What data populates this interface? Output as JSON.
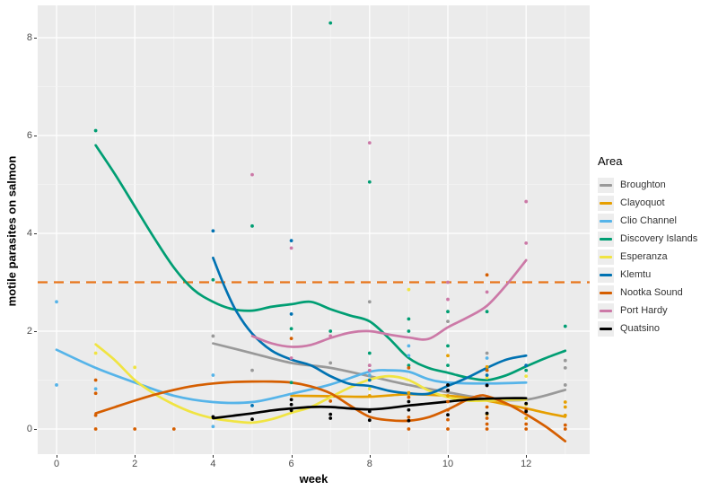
{
  "y_axis": {
    "title": "motile parasites on salmon",
    "ticks": [
      0,
      2,
      4,
      6,
      8
    ],
    "range": [
      -0.55,
      8.6
    ]
  },
  "x_axis": {
    "title": "week",
    "ticks": [
      0,
      2,
      4,
      6,
      8,
      10,
      12
    ],
    "range": [
      -0.5,
      13.6
    ]
  },
  "legend": {
    "title": "Area",
    "items": [
      {
        "label": "Broughton",
        "color": "#999999"
      },
      {
        "label": "Clayoquot",
        "color": "#E69F00"
      },
      {
        "label": "Clio Channel",
        "color": "#56B4E9"
      },
      {
        "label": "Discovery Islands",
        "color": "#009E73"
      },
      {
        "label": "Esperanza",
        "color": "#F0E442"
      },
      {
        "label": "Klemtu",
        "color": "#0072B2"
      },
      {
        "label": "Nootka Sound",
        "color": "#D55E00"
      },
      {
        "label": "Port Hardy",
        "color": "#CC79A7"
      },
      {
        "label": "Quatsino",
        "color": "#000000"
      }
    ]
  },
  "style": {
    "panel_bg": "#EBEBEB",
    "grid_major": "#FFFFFF",
    "grid_minor": "#F5F5F5",
    "ref_line_color": "#E8751A"
  },
  "chart_data": {
    "type": "scatter",
    "subtype": "scatter points with loess smooth lines",
    "title": "",
    "xlabel": "week",
    "ylabel": "motile parasites on salmon",
    "xlim": [
      -0.5,
      13.6
    ],
    "ylim": [
      -0.55,
      8.6
    ],
    "grid": "on",
    "legend_position": "right",
    "reference_line": {
      "y": 3,
      "style": "dashed",
      "color": "#E8751A"
    },
    "series": [
      {
        "name": "Broughton",
        "color": "#999999",
        "line": [
          [
            4,
            1.75
          ],
          [
            5,
            1.55
          ],
          [
            6,
            1.35
          ],
          [
            7,
            1.25
          ],
          [
            8,
            1.08
          ],
          [
            9,
            0.9
          ],
          [
            10,
            0.75
          ],
          [
            11,
            0.62
          ],
          [
            12,
            0.6
          ],
          [
            13,
            0.8
          ]
        ],
        "points": [
          [
            4,
            1.9
          ],
          [
            5,
            1.2
          ],
          [
            7,
            1.35
          ],
          [
            8,
            2.6
          ],
          [
            8,
            1.3
          ],
          [
            10,
            2.2
          ],
          [
            11,
            1.55
          ],
          [
            13,
            1.4
          ],
          [
            13,
            1.25
          ],
          [
            13,
            0.9
          ]
        ]
      },
      {
        "name": "Clayoquot",
        "color": "#E69F00",
        "line": [
          [
            6,
            0.68
          ],
          [
            7,
            0.67
          ],
          [
            8,
            0.66
          ],
          [
            9,
            0.71
          ],
          [
            10,
            0.68
          ],
          [
            10.5,
            0.64
          ],
          [
            11,
            0.58
          ],
          [
            11.5,
            0.5
          ],
          [
            12,
            0.42
          ],
          [
            12.5,
            0.33
          ],
          [
            13,
            0.25
          ]
        ],
        "points": [
          [
            8,
            0.68
          ],
          [
            9,
            0.74
          ],
          [
            10,
            1.5
          ],
          [
            10,
            0.68
          ],
          [
            11,
            1.27
          ],
          [
            11,
            0.3
          ],
          [
            12,
            0.5
          ],
          [
            12,
            0.22
          ],
          [
            13,
            0.55
          ],
          [
            13,
            0.45
          ],
          [
            13,
            0.28
          ]
        ]
      },
      {
        "name": "Clio Channel",
        "color": "#56B4E9",
        "line": [
          [
            0,
            1.62
          ],
          [
            1,
            1.25
          ],
          [
            2,
            0.95
          ],
          [
            3,
            0.68
          ],
          [
            4,
            0.55
          ],
          [
            5,
            0.55
          ],
          [
            6,
            0.72
          ],
          [
            7,
            0.91
          ],
          [
            8,
            1.17
          ],
          [
            8.5,
            1.2
          ],
          [
            9,
            1.17
          ],
          [
            9.5,
            1.02
          ],
          [
            10,
            0.95
          ],
          [
            11,
            0.93
          ],
          [
            12,
            0.95
          ]
        ],
        "points": [
          [
            0,
            2.6
          ],
          [
            0,
            0.9
          ],
          [
            1,
            0.82
          ],
          [
            4,
            1.1
          ],
          [
            4,
            0.05
          ],
          [
            8,
            1.1
          ],
          [
            9,
            1.7
          ],
          [
            9,
            1.5
          ],
          [
            11,
            1.45
          ]
        ]
      },
      {
        "name": "Discovery Islands",
        "color": "#009E73",
        "line": [
          [
            1,
            5.8
          ],
          [
            1.5,
            5.2
          ],
          [
            2,
            4.55
          ],
          [
            2.5,
            3.9
          ],
          [
            3,
            3.3
          ],
          [
            3.5,
            2.85
          ],
          [
            4,
            2.6
          ],
          [
            4.5,
            2.45
          ],
          [
            5,
            2.42
          ],
          [
            5.5,
            2.5
          ],
          [
            6,
            2.55
          ],
          [
            6.5,
            2.6
          ],
          [
            7,
            2.45
          ],
          [
            7.5,
            2.32
          ],
          [
            8,
            2.2
          ],
          [
            8.5,
            1.85
          ],
          [
            9,
            1.45
          ],
          [
            9.5,
            1.25
          ],
          [
            10,
            1.15
          ],
          [
            10.5,
            1.05
          ],
          [
            11,
            1.0
          ],
          [
            11.5,
            1.1
          ],
          [
            12,
            1.28
          ],
          [
            12.5,
            1.45
          ],
          [
            13,
            1.6
          ]
        ],
        "points": [
          [
            1,
            6.1
          ],
          [
            4,
            3.05
          ],
          [
            5,
            4.15
          ],
          [
            6,
            2.05
          ],
          [
            6,
            0.95
          ],
          [
            7,
            8.3
          ],
          [
            7,
            2.0
          ],
          [
            8,
            5.05
          ],
          [
            8,
            1.55
          ],
          [
            9,
            2.25
          ],
          [
            9,
            2.0
          ],
          [
            9,
            1.3
          ],
          [
            10,
            2.4
          ],
          [
            10,
            1.7
          ],
          [
            10,
            1.3
          ],
          [
            11,
            2.4
          ],
          [
            11,
            1.2
          ],
          [
            12,
            1.2
          ],
          [
            13,
            2.1
          ]
        ]
      },
      {
        "name": "Esperanza",
        "color": "#F0E442",
        "line": [
          [
            1,
            1.73
          ],
          [
            1.5,
            1.4
          ],
          [
            2,
            1.0
          ],
          [
            2.5,
            0.72
          ],
          [
            3,
            0.5
          ],
          [
            3.5,
            0.33
          ],
          [
            4,
            0.22
          ],
          [
            4.5,
            0.16
          ],
          [
            5,
            0.13
          ],
          [
            5.5,
            0.2
          ],
          [
            6,
            0.33
          ],
          [
            6.5,
            0.45
          ],
          [
            7,
            0.65
          ],
          [
            7.5,
            0.85
          ],
          [
            8,
            1.01
          ],
          [
            8.5,
            1.08
          ],
          [
            9,
            1.0
          ],
          [
            9.5,
            0.79
          ],
          [
            10,
            0.65
          ],
          [
            10.5,
            0.58
          ],
          [
            11,
            0.58
          ],
          [
            11.5,
            0.6
          ],
          [
            12,
            0.6
          ]
        ],
        "points": [
          [
            1,
            1.55
          ],
          [
            2,
            1.26
          ],
          [
            8,
            0.82
          ],
          [
            9,
            2.85
          ],
          [
            11,
            1.05
          ],
          [
            12,
            1.08
          ],
          [
            12,
            0.5
          ]
        ]
      },
      {
        "name": "Klemtu",
        "color": "#0072B2",
        "line": [
          [
            4,
            3.5
          ],
          [
            4.3,
            2.9
          ],
          [
            4.6,
            2.4
          ],
          [
            5,
            1.95
          ],
          [
            5.5,
            1.6
          ],
          [
            6,
            1.42
          ],
          [
            6.5,
            1.3
          ],
          [
            7,
            1.08
          ],
          [
            7.5,
            0.92
          ],
          [
            8,
            0.88
          ],
          [
            8.5,
            0.78
          ],
          [
            9,
            0.73
          ],
          [
            9.5,
            0.72
          ],
          [
            10,
            0.88
          ],
          [
            10.5,
            1.05
          ],
          [
            11,
            1.25
          ],
          [
            11.5,
            1.42
          ],
          [
            12,
            1.5
          ]
        ],
        "points": [
          [
            4,
            4.05
          ],
          [
            5,
            0.48
          ],
          [
            6,
            3.85
          ],
          [
            6,
            2.35
          ],
          [
            8,
            1.0
          ],
          [
            11,
            1.1
          ],
          [
            11,
            0.9
          ],
          [
            12,
            1.3
          ]
        ]
      },
      {
        "name": "Nootka Sound",
        "color": "#D55E00",
        "line": [
          [
            1,
            0.32
          ],
          [
            1.5,
            0.45
          ],
          [
            2,
            0.58
          ],
          [
            2.5,
            0.7
          ],
          [
            3,
            0.8
          ],
          [
            3.5,
            0.88
          ],
          [
            4,
            0.93
          ],
          [
            4.5,
            0.96
          ],
          [
            5,
            0.97
          ],
          [
            5.5,
            0.97
          ],
          [
            6,
            0.95
          ],
          [
            6.5,
            0.87
          ],
          [
            7,
            0.73
          ],
          [
            7.5,
            0.48
          ],
          [
            8,
            0.25
          ],
          [
            8.5,
            0.18
          ],
          [
            9,
            0.17
          ],
          [
            9.5,
            0.24
          ],
          [
            10,
            0.4
          ],
          [
            10.5,
            0.6
          ],
          [
            10.8,
            0.68
          ],
          [
            11,
            0.67
          ],
          [
            11.5,
            0.52
          ],
          [
            12,
            0.3
          ],
          [
            12.5,
            0.05
          ],
          [
            13,
            -0.25
          ]
        ],
        "points": [
          [
            1,
            1.0
          ],
          [
            1,
            0.73
          ],
          [
            1,
            0.28
          ],
          [
            1,
            0
          ],
          [
            2,
            0
          ],
          [
            3,
            0
          ],
          [
            6,
            1.85
          ],
          [
            7,
            0.57
          ],
          [
            9,
            1.25
          ],
          [
            9,
            0.65
          ],
          [
            9,
            0.24
          ],
          [
            9,
            0
          ],
          [
            10,
            0.56
          ],
          [
            10,
            0.39
          ],
          [
            10,
            0.19
          ],
          [
            10,
            0
          ],
          [
            11,
            3.15
          ],
          [
            11,
            1.2
          ],
          [
            11,
            0.45
          ],
          [
            11,
            0.22
          ],
          [
            11,
            0.1
          ],
          [
            11,
            0
          ],
          [
            12,
            0.4
          ],
          [
            12,
            0.1
          ],
          [
            12,
            0
          ],
          [
            13,
            0.08
          ],
          [
            13,
            0
          ]
        ]
      },
      {
        "name": "Port Hardy",
        "color": "#CC79A7",
        "line": [
          [
            5,
            1.9
          ],
          [
            5.5,
            1.75
          ],
          [
            6,
            1.68
          ],
          [
            6.5,
            1.72
          ],
          [
            7,
            1.86
          ],
          [
            7.5,
            1.97
          ],
          [
            8,
            2.0
          ],
          [
            8.5,
            1.93
          ],
          [
            9,
            1.87
          ],
          [
            9.5,
            1.84
          ],
          [
            10,
            2.08
          ],
          [
            10.5,
            2.28
          ],
          [
            11,
            2.52
          ],
          [
            11.5,
            2.95
          ],
          [
            12,
            3.45
          ]
        ],
        "points": [
          [
            5,
            5.2
          ],
          [
            6,
            3.7
          ],
          [
            6,
            1.45
          ],
          [
            7,
            1.9
          ],
          [
            8,
            5.85
          ],
          [
            8,
            1.3
          ],
          [
            8,
            1.2
          ],
          [
            10,
            3.0
          ],
          [
            10,
            2.65
          ],
          [
            11,
            2.8
          ],
          [
            12,
            4.65
          ],
          [
            12,
            3.8
          ]
        ]
      },
      {
        "name": "Quatsino",
        "color": "#000000",
        "line": [
          [
            4,
            0.22
          ],
          [
            4.5,
            0.27
          ],
          [
            5,
            0.32
          ],
          [
            5.5,
            0.38
          ],
          [
            6,
            0.42
          ],
          [
            6.5,
            0.45
          ],
          [
            7,
            0.45
          ],
          [
            7.5,
            0.42
          ],
          [
            8,
            0.4
          ],
          [
            8.5,
            0.43
          ],
          [
            9,
            0.48
          ],
          [
            9.5,
            0.52
          ],
          [
            10,
            0.56
          ],
          [
            10.5,
            0.6
          ],
          [
            11,
            0.62
          ],
          [
            11.5,
            0.63
          ],
          [
            12,
            0.63
          ]
        ],
        "points": [
          [
            4,
            0.25
          ],
          [
            5,
            0.2
          ],
          [
            6,
            0.6
          ],
          [
            6,
            0.5
          ],
          [
            6,
            0.38
          ],
          [
            7,
            0.3
          ],
          [
            7,
            0.22
          ],
          [
            8,
            0.36
          ],
          [
            8,
            0.18
          ],
          [
            9,
            0.56
          ],
          [
            9,
            0.39
          ],
          [
            9,
            0.17
          ],
          [
            10,
            0.9
          ],
          [
            10,
            0.79
          ],
          [
            10,
            0.29
          ],
          [
            11,
            0.89
          ],
          [
            11,
            0.32
          ],
          [
            12,
            0.52
          ],
          [
            12,
            0.36
          ]
        ]
      }
    ]
  }
}
